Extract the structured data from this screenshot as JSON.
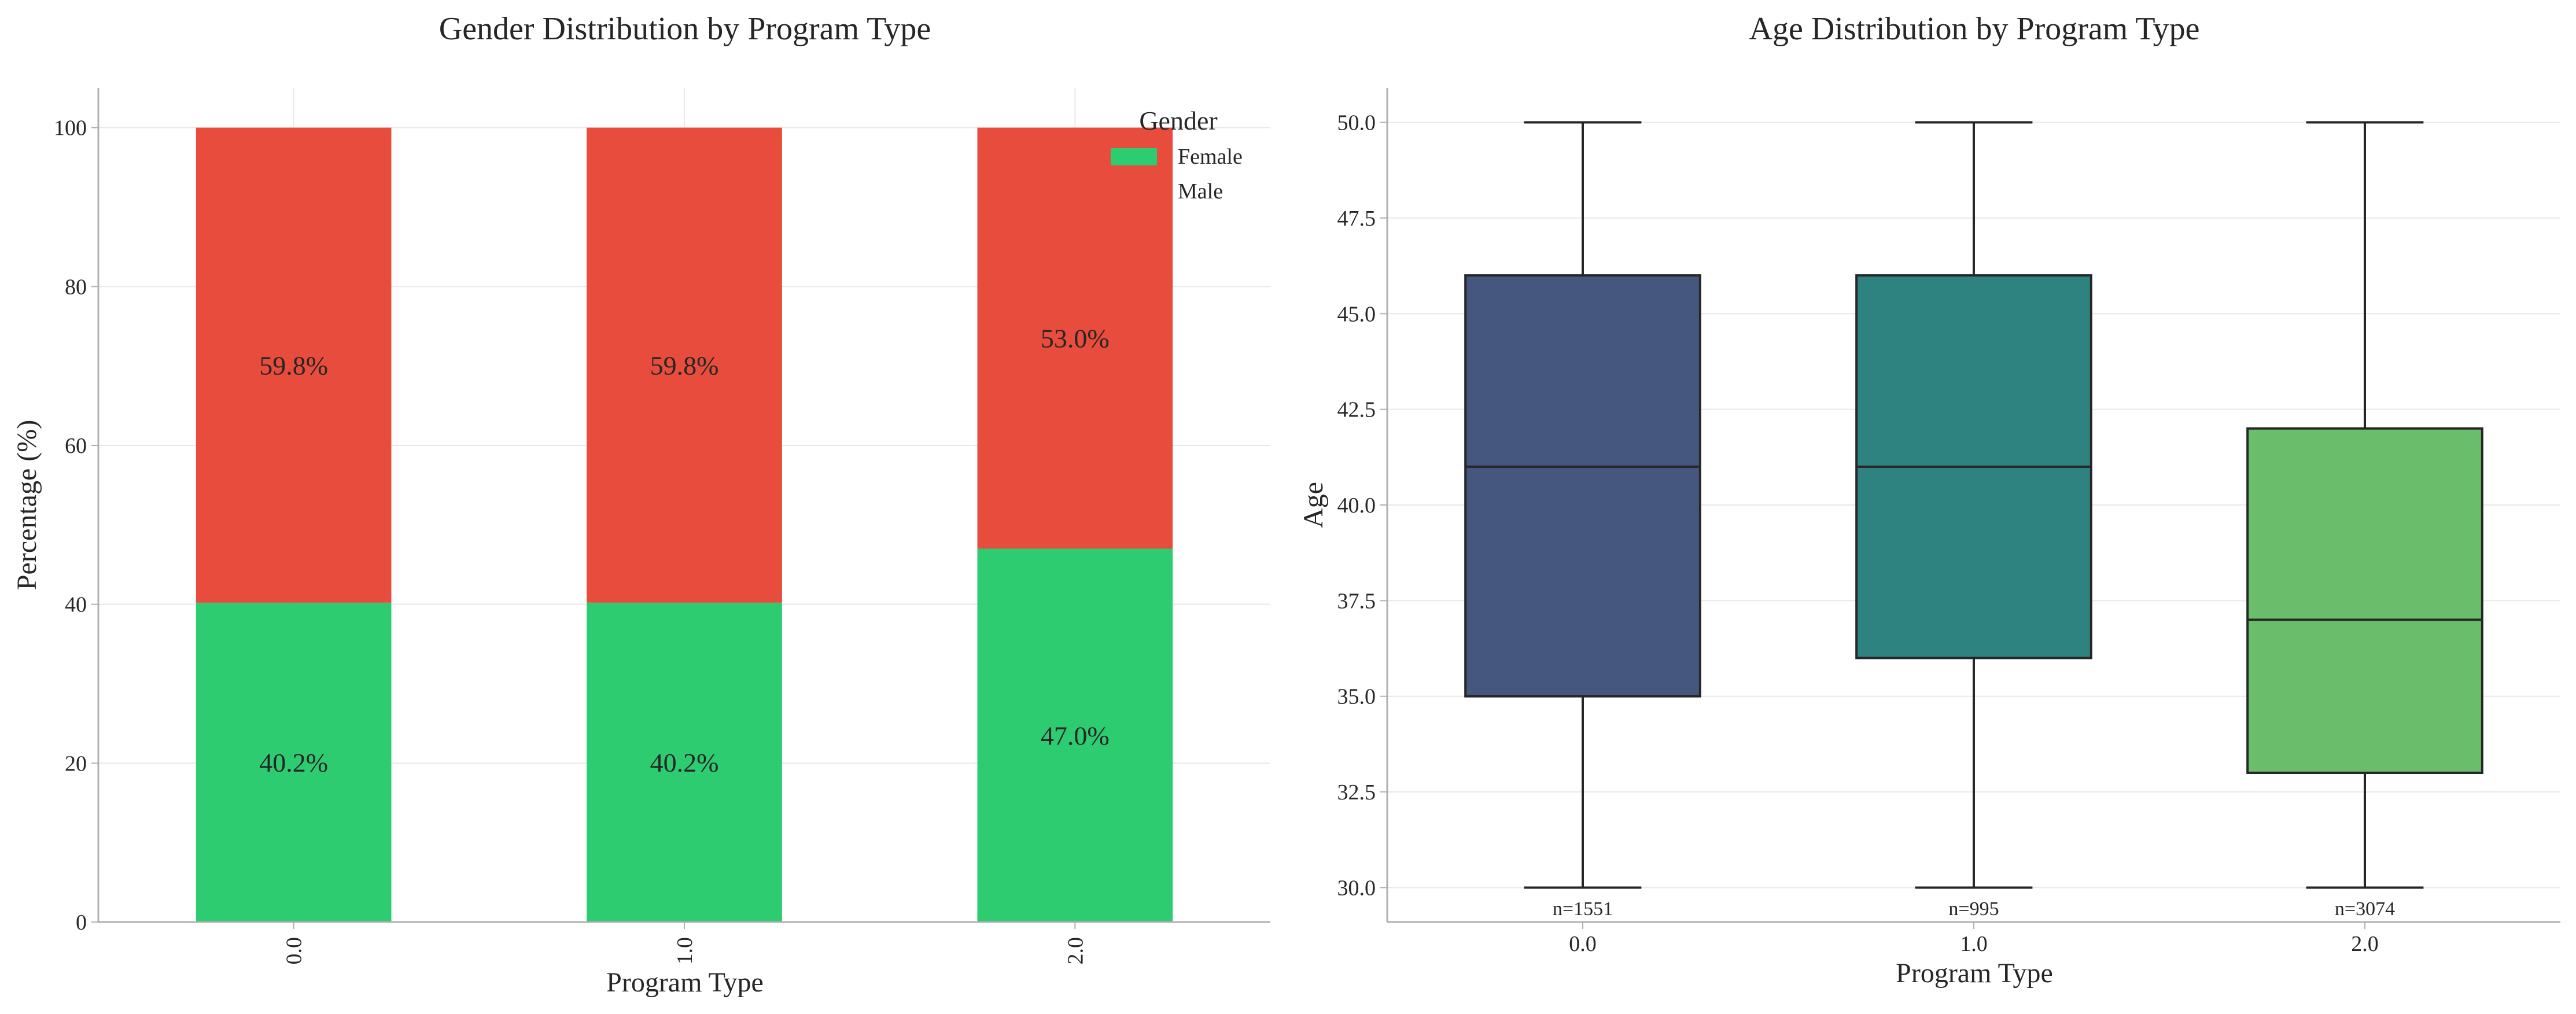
{
  "chart_data": [
    {
      "type": "bar",
      "stacked": true,
      "title": "Gender Distribution by Program Type",
      "xlabel": "Program Type",
      "ylabel": "Percentage (%)",
      "categories": [
        "0.0",
        "1.0",
        "2.0"
      ],
      "ylim": [
        0,
        105
      ],
      "yticks": [
        0,
        20,
        40,
        60,
        80,
        100
      ],
      "grid": true,
      "legend": {
        "title": "Gender",
        "placement": "top-right"
      },
      "series": [
        {
          "name": "Female",
          "color": "#2ecc71",
          "values": [
            40.2,
            40.2,
            47.0
          ],
          "labels": [
            "40.2%",
            "40.2%",
            "47.0%"
          ]
        },
        {
          "name": "Male",
          "color": "#e74c3c",
          "values": [
            59.8,
            59.8,
            53.0
          ],
          "labels": [
            "59.8%",
            "59.8%",
            "53.0%"
          ]
        }
      ]
    },
    {
      "type": "box",
      "title": "Age Distribution by Program Type",
      "xlabel": "Program Type",
      "ylabel": "Age",
      "categories": [
        "0.0",
        "1.0",
        "2.0"
      ],
      "ylim": [
        29.1,
        50.9
      ],
      "yticks": [
        "30.0",
        "32.5",
        "35.0",
        "37.5",
        "40.0",
        "42.5",
        "45.0",
        "47.5",
        "50.0"
      ],
      "grid": true,
      "boxes": [
        {
          "category": "0.0",
          "min": 30.0,
          "q1": 35.0,
          "median": 41.0,
          "q3": 46.0,
          "max": 50.0,
          "n_label": "n=1551",
          "color": "#46577f"
        },
        {
          "category": "1.0",
          "min": 30.0,
          "q1": 36.0,
          "median": 41.0,
          "q3": 46.0,
          "max": 50.0,
          "n_label": "n=995",
          "color": "#2e8380"
        },
        {
          "category": "2.0",
          "min": 30.0,
          "q1": 33.0,
          "median": 37.0,
          "q3": 42.0,
          "max": 50.0,
          "n_label": "n=3074",
          "color": "#6abd6a"
        }
      ]
    }
  ]
}
